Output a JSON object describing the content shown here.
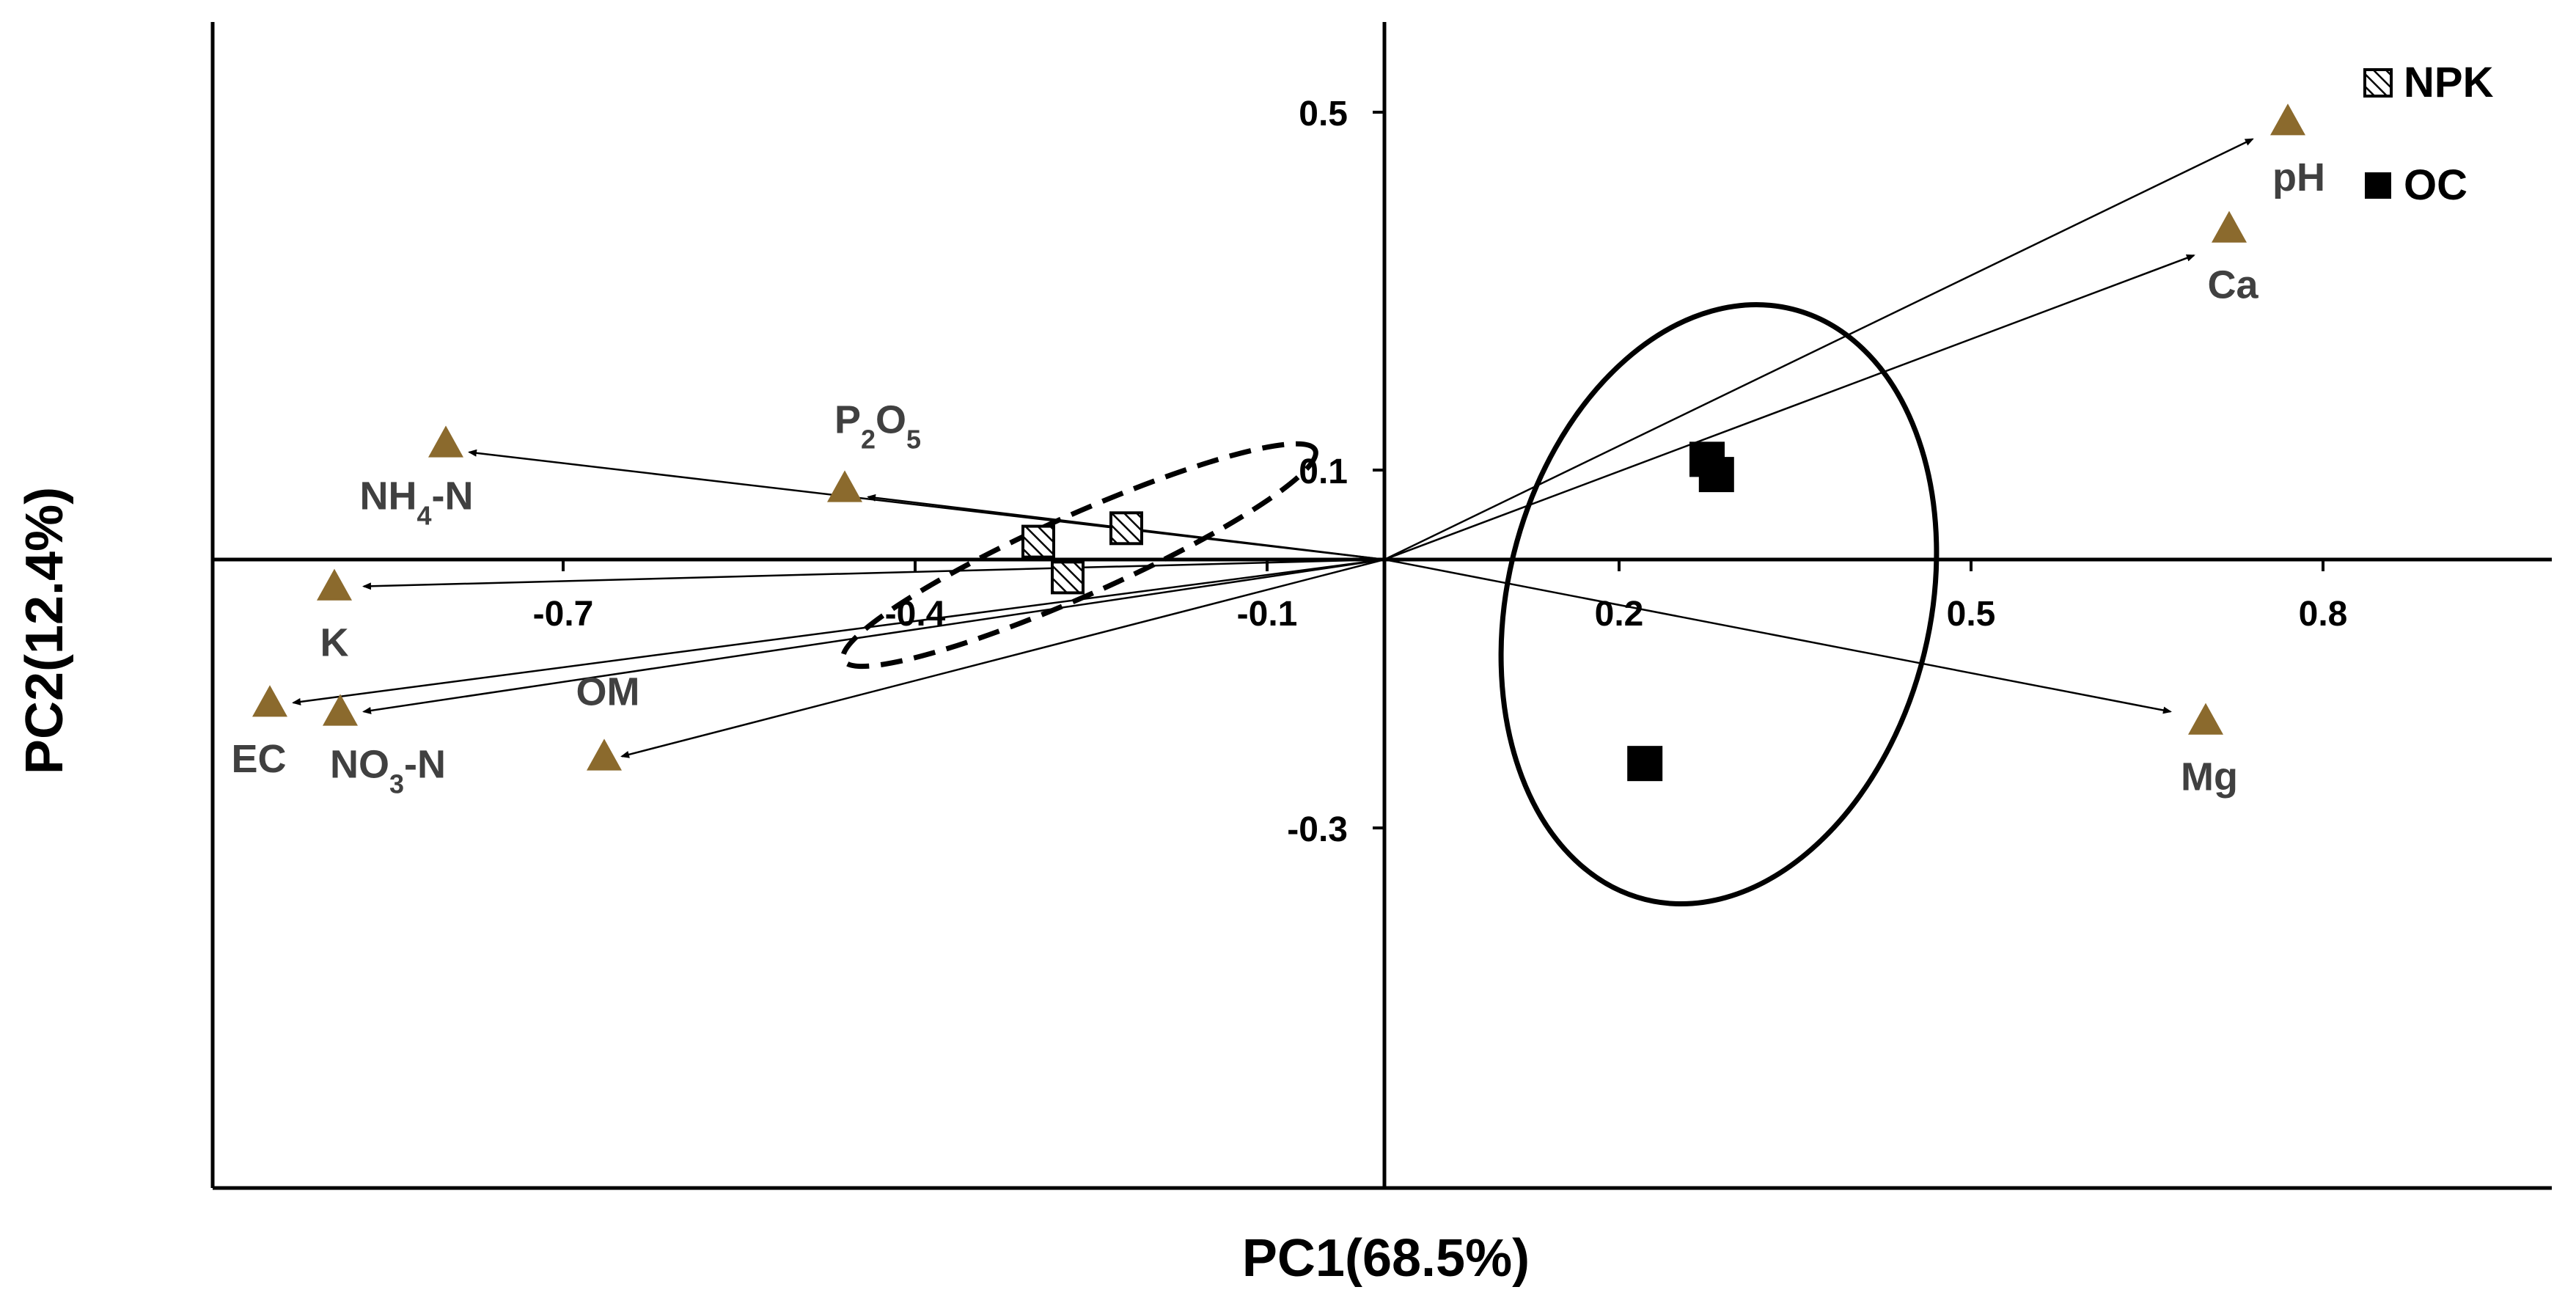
{
  "chart_data": {
    "type": "scatter",
    "title": "",
    "xlabel": "PC1(68.5%)",
    "ylabel": "PC2(12.4%)",
    "xlim": [
      -1.0,
      1.0
    ],
    "ylim": [
      -0.7,
      0.6
    ],
    "x_ticks": [
      {
        "value": -0.7,
        "label": "-0.7"
      },
      {
        "value": -0.4,
        "label": "-0.4"
      },
      {
        "value": -0.1,
        "label": "-0.1"
      },
      {
        "value": 0.2,
        "label": "0.2"
      },
      {
        "value": 0.5,
        "label": "0.5"
      },
      {
        "value": 0.8,
        "label": "0.8"
      }
    ],
    "y_ticks": [
      {
        "value": 0.5,
        "label": "0.5"
      },
      {
        "value": 0.1,
        "label": "0.1"
      },
      {
        "value": -0.3,
        "label": "-0.3"
      }
    ],
    "grid": false,
    "legend": {
      "position": "top-right",
      "entries": [
        {
          "label": "NPK",
          "marker": "hatched-square"
        },
        {
          "label": "OC",
          "marker": "filled-square"
        }
      ]
    },
    "variables": [
      {
        "label": "pH",
        "main": "pH",
        "sub": "",
        "suffix": "",
        "x": 0.77,
        "y": 0.49,
        "arrow_x": 0.74,
        "arrow_y": 0.47
      },
      {
        "label": "Ca",
        "main": "Ca",
        "sub": "",
        "suffix": "",
        "x": 0.72,
        "y": 0.37,
        "arrow_x": 0.69,
        "arrow_y": 0.34
      },
      {
        "label": "Mg",
        "main": "Mg",
        "sub": "",
        "suffix": "",
        "x": 0.7,
        "y": -0.18,
        "arrow_x": 0.67,
        "arrow_y": -0.17
      },
      {
        "label": "NH4-N",
        "main": "NH",
        "sub": "4",
        "suffix": "-N",
        "x": -0.8,
        "y": 0.13,
        "arrow_x": -0.78,
        "arrow_y": 0.12
      },
      {
        "label": "P2O5",
        "main": "P",
        "sub": "2",
        "suffix": "O",
        "sub2": "5",
        "x": -0.46,
        "y": 0.08,
        "arrow_x": -0.44,
        "arrow_y": 0.07
      },
      {
        "label": "K",
        "main": "K",
        "sub": "",
        "suffix": "",
        "x": -0.895,
        "y": -0.03,
        "arrow_x": -0.87,
        "arrow_y": -0.03
      },
      {
        "label": "EC",
        "main": "EC",
        "sub": "",
        "suffix": "",
        "x": -0.95,
        "y": -0.16,
        "arrow_x": -0.93,
        "arrow_y": -0.16
      },
      {
        "label": "NO3-N",
        "main": "NO",
        "sub": "3",
        "suffix": "-N",
        "x": -0.89,
        "y": -0.17,
        "arrow_x": -0.87,
        "arrow_y": -0.17
      },
      {
        "label": "OM",
        "main": "OM",
        "sub": "",
        "suffix": "",
        "x": -0.665,
        "y": -0.22,
        "arrow_x": -0.65,
        "arrow_y": -0.22
      }
    ],
    "samples": [
      {
        "group": "NPK",
        "x": -0.22,
        "y": 0.035
      },
      {
        "group": "NPK",
        "x": -0.295,
        "y": 0.02
      },
      {
        "group": "NPK",
        "x": -0.27,
        "y": -0.02
      },
      {
        "group": "OC",
        "x": 0.275,
        "y": 0.112
      },
      {
        "group": "OC",
        "x": 0.283,
        "y": 0.095
      },
      {
        "group": "OC",
        "x": 0.222,
        "y": -0.228
      }
    ],
    "ellipses": [
      {
        "group": "NPK",
        "style": "dashed",
        "cx": -0.26,
        "cy": 0.005,
        "rx": 0.22,
        "ry": 0.045,
        "angle_deg": -24
      },
      {
        "group": "OC",
        "style": "solid",
        "cx": 0.285,
        "cy": -0.05,
        "rx": 0.18,
        "ry": 0.34,
        "angle_deg": 14
      }
    ],
    "colors": {
      "variable_marker": "#8b6a2d",
      "axis": "#000000",
      "arrow": "#000000",
      "label": "#404040"
    }
  }
}
